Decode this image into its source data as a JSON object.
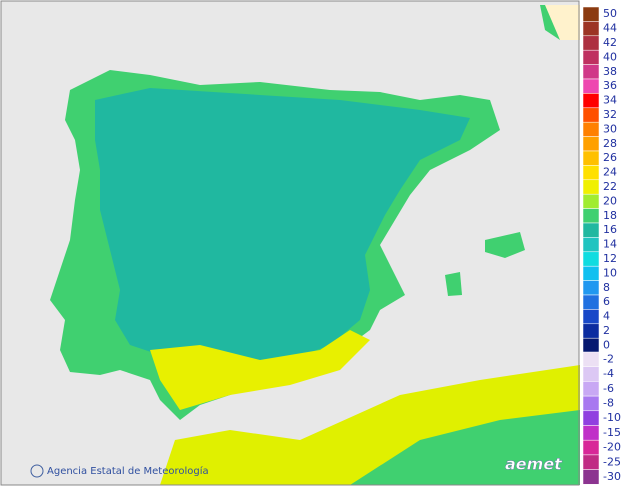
{
  "footer": {
    "agency": "Agencia Estatal de Meteorología",
    "logo": "aemet"
  },
  "legend": {
    "items": [
      {
        "value": 50,
        "color": "#8b3a10"
      },
      {
        "value": 44,
        "color": "#9c3424"
      },
      {
        "value": 42,
        "color": "#ad3040"
      },
      {
        "value": 40,
        "color": "#bf3060"
      },
      {
        "value": 38,
        "color": "#d03888"
      },
      {
        "value": 36,
        "color": "#ee48b0"
      },
      {
        "value": 34,
        "color": "#ff0000"
      },
      {
        "value": 32,
        "color": "#ff5000"
      },
      {
        "value": 30,
        "color": "#ff8000"
      },
      {
        "value": 28,
        "color": "#ffa000"
      },
      {
        "value": 26,
        "color": "#ffc000"
      },
      {
        "value": 24,
        "color": "#ffe000"
      },
      {
        "value": 22,
        "color": "#f0f000"
      },
      {
        "value": 20,
        "color": "#a0ec30"
      },
      {
        "value": 18,
        "color": "#40d070"
      },
      {
        "value": 16,
        "color": "#20b8a0"
      },
      {
        "value": 14,
        "color": "#20c4c0"
      },
      {
        "value": 12,
        "color": "#10dce0"
      },
      {
        "value": 10,
        "color": "#10c0f0"
      },
      {
        "value": 8,
        "color": "#2098f0"
      },
      {
        "value": 6,
        "color": "#2070e0"
      },
      {
        "value": 4,
        "color": "#1848c8"
      },
      {
        "value": 2,
        "color": "#0c2ca0"
      },
      {
        "value": 0,
        "color": "#061870"
      }
    ],
    "negative_items": [
      {
        "value": -2,
        "color": "#ece0f4"
      },
      {
        "value": -4,
        "color": "#dcc8f4"
      },
      {
        "value": -6,
        "color": "#c8a8f4"
      },
      {
        "value": -8,
        "color": "#a878f0"
      },
      {
        "value": -10,
        "color": "#9040e0"
      },
      {
        "value": -15,
        "color": "#c030c8"
      },
      {
        "value": -20,
        "color": "#d82898"
      },
      {
        "value": -25,
        "color": "#c02c84"
      },
      {
        "value": -30,
        "color": "#8c3490"
      }
    ]
  }
}
